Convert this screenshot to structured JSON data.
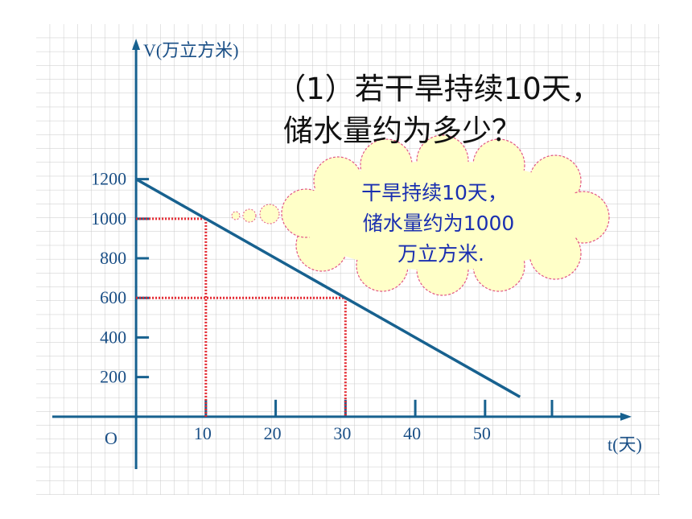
{
  "chart_data": {
    "type": "line",
    "title": "（1）若干旱持续10天，",
    "subtitle": "储水量约为多少？",
    "y_label": "V(万立方米)",
    "x_label": "t(天)",
    "origin_label": "O",
    "x": [
      0,
      55
    ],
    "values": [
      1200,
      100
    ],
    "color": "#17618f",
    "xlim": [
      -12,
      71
    ],
    "ylim": [
      -265,
      1910
    ],
    "xticks": [
      10,
      20,
      30,
      40,
      50
    ],
    "yticks": [
      200,
      400,
      600,
      800,
      1000,
      1200
    ],
    "guides": [
      {
        "x": 10,
        "y": 1000
      },
      {
        "x": 30,
        "y": 600
      }
    ],
    "guide_color": "#e3262e",
    "annotation": [
      "干旱持续10天，",
      "储水量约为1000",
      "万立方米."
    ]
  }
}
